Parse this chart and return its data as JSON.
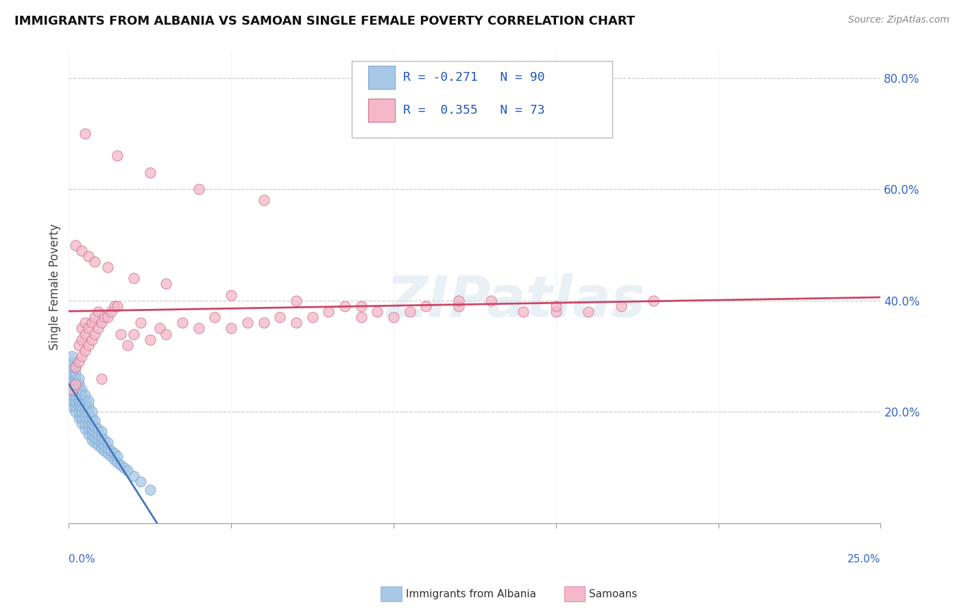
{
  "title": "IMMIGRANTS FROM ALBANIA VS SAMOAN SINGLE FEMALE POVERTY CORRELATION CHART",
  "source": "Source: ZipAtlas.com",
  "ylabel": "Single Female Poverty",
  "right_yticks": [
    "80.0%",
    "60.0%",
    "40.0%",
    "20.0%"
  ],
  "right_ytick_vals": [
    0.8,
    0.6,
    0.4,
    0.2
  ],
  "albania_color": "#a8c8e8",
  "albania_edge": "#7aaacf",
  "samoan_color": "#f4b8c8",
  "samoan_edge": "#d07090",
  "trendline_albania_solid_color": "#4477bb",
  "trendline_albania_dash_color": "#88aadd",
  "trendline_samoan_color": "#cc4466",
  "watermark": "ZIPatlas",
  "xlim": [
    0.0,
    0.25
  ],
  "ylim": [
    0.0,
    0.85
  ],
  "albania_scatter_x": [
    0.0,
    0.0,
    0.0,
    0.0,
    0.0,
    0.001,
    0.001,
    0.001,
    0.001,
    0.001,
    0.001,
    0.001,
    0.001,
    0.001,
    0.001,
    0.002,
    0.002,
    0.002,
    0.002,
    0.002,
    0.002,
    0.002,
    0.002,
    0.002,
    0.003,
    0.003,
    0.003,
    0.003,
    0.003,
    0.003,
    0.003,
    0.003,
    0.004,
    0.004,
    0.004,
    0.004,
    0.004,
    0.004,
    0.004,
    0.005,
    0.005,
    0.005,
    0.005,
    0.005,
    0.005,
    0.005,
    0.006,
    0.006,
    0.006,
    0.006,
    0.006,
    0.006,
    0.006,
    0.007,
    0.007,
    0.007,
    0.007,
    0.007,
    0.007,
    0.008,
    0.008,
    0.008,
    0.008,
    0.008,
    0.009,
    0.009,
    0.009,
    0.009,
    0.01,
    0.01,
    0.01,
    0.01,
    0.011,
    0.011,
    0.011,
    0.012,
    0.012,
    0.012,
    0.013,
    0.013,
    0.014,
    0.014,
    0.015,
    0.015,
    0.016,
    0.017,
    0.018,
    0.02,
    0.022,
    0.025
  ],
  "albania_scatter_y": [
    0.22,
    0.24,
    0.25,
    0.26,
    0.27,
    0.21,
    0.22,
    0.23,
    0.24,
    0.25,
    0.26,
    0.27,
    0.28,
    0.29,
    0.3,
    0.2,
    0.21,
    0.22,
    0.23,
    0.24,
    0.25,
    0.26,
    0.27,
    0.28,
    0.19,
    0.2,
    0.21,
    0.22,
    0.23,
    0.24,
    0.25,
    0.26,
    0.18,
    0.19,
    0.2,
    0.21,
    0.22,
    0.23,
    0.24,
    0.17,
    0.18,
    0.19,
    0.2,
    0.21,
    0.22,
    0.23,
    0.16,
    0.17,
    0.18,
    0.19,
    0.2,
    0.21,
    0.22,
    0.15,
    0.16,
    0.17,
    0.18,
    0.19,
    0.2,
    0.145,
    0.155,
    0.165,
    0.175,
    0.185,
    0.14,
    0.15,
    0.16,
    0.17,
    0.135,
    0.145,
    0.155,
    0.165,
    0.13,
    0.14,
    0.15,
    0.125,
    0.135,
    0.145,
    0.12,
    0.13,
    0.115,
    0.125,
    0.11,
    0.12,
    0.105,
    0.1,
    0.095,
    0.085,
    0.075,
    0.06
  ],
  "samoan_scatter_x": [
    0.001,
    0.002,
    0.002,
    0.003,
    0.003,
    0.004,
    0.004,
    0.004,
    0.005,
    0.005,
    0.005,
    0.006,
    0.006,
    0.007,
    0.007,
    0.008,
    0.008,
    0.009,
    0.009,
    0.01,
    0.01,
    0.011,
    0.012,
    0.013,
    0.014,
    0.015,
    0.016,
    0.018,
    0.02,
    0.022,
    0.025,
    0.028,
    0.03,
    0.035,
    0.04,
    0.045,
    0.05,
    0.055,
    0.06,
    0.065,
    0.07,
    0.075,
    0.08,
    0.085,
    0.09,
    0.095,
    0.1,
    0.105,
    0.11,
    0.12,
    0.13,
    0.14,
    0.15,
    0.16,
    0.17,
    0.18,
    0.002,
    0.004,
    0.006,
    0.008,
    0.012,
    0.02,
    0.03,
    0.05,
    0.07,
    0.09,
    0.12,
    0.15,
    0.005,
    0.015,
    0.025,
    0.04,
    0.06
  ],
  "samoan_scatter_y": [
    0.24,
    0.25,
    0.28,
    0.29,
    0.32,
    0.3,
    0.33,
    0.35,
    0.31,
    0.34,
    0.36,
    0.32,
    0.35,
    0.33,
    0.36,
    0.34,
    0.37,
    0.35,
    0.38,
    0.26,
    0.36,
    0.37,
    0.37,
    0.38,
    0.39,
    0.39,
    0.34,
    0.32,
    0.34,
    0.36,
    0.33,
    0.35,
    0.34,
    0.36,
    0.35,
    0.37,
    0.35,
    0.36,
    0.36,
    0.37,
    0.36,
    0.37,
    0.38,
    0.39,
    0.37,
    0.38,
    0.37,
    0.38,
    0.39,
    0.39,
    0.4,
    0.38,
    0.38,
    0.38,
    0.39,
    0.4,
    0.5,
    0.49,
    0.48,
    0.47,
    0.46,
    0.44,
    0.43,
    0.41,
    0.4,
    0.39,
    0.4,
    0.39,
    0.7,
    0.66,
    0.63,
    0.6,
    0.58
  ]
}
